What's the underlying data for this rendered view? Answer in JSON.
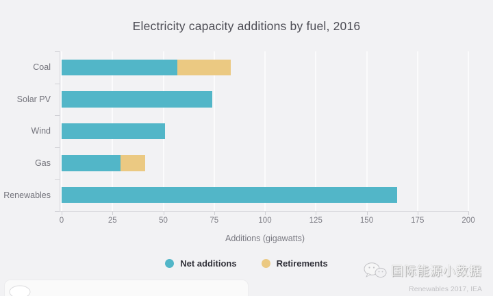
{
  "page": {
    "background": "#f2f2f4"
  },
  "chart_data": {
    "type": "bar",
    "orientation": "horizontal",
    "stacked": true,
    "title": "Electricity capacity additions by fuel, 2016",
    "categories": [
      "Coal",
      "Solar PV",
      "Wind",
      "Gas",
      "Renewables"
    ],
    "series": [
      {
        "name": "Net additions",
        "color": "#52b6c8",
        "values": [
          57,
          74,
          51,
          29,
          165
        ]
      },
      {
        "name": "Retirements",
        "color": "#ebc982",
        "values": [
          26,
          0,
          0,
          12,
          0
        ]
      }
    ],
    "xlabel": "Additions (gigawatts)",
    "x_ticks": [
      0,
      25,
      50,
      75,
      100,
      125,
      150,
      175,
      200
    ],
    "xlim": [
      0,
      200
    ],
    "grid": true,
    "legend_position": "bottom"
  },
  "footer": {
    "watermark_text": "国际能源小数据",
    "source": "Renewables 2017, IEA"
  },
  "icons": {
    "watermark_logo": "wechat-chat-bubbles-icon",
    "bottom_card_logo": "partial-chat-bubble-icon"
  }
}
